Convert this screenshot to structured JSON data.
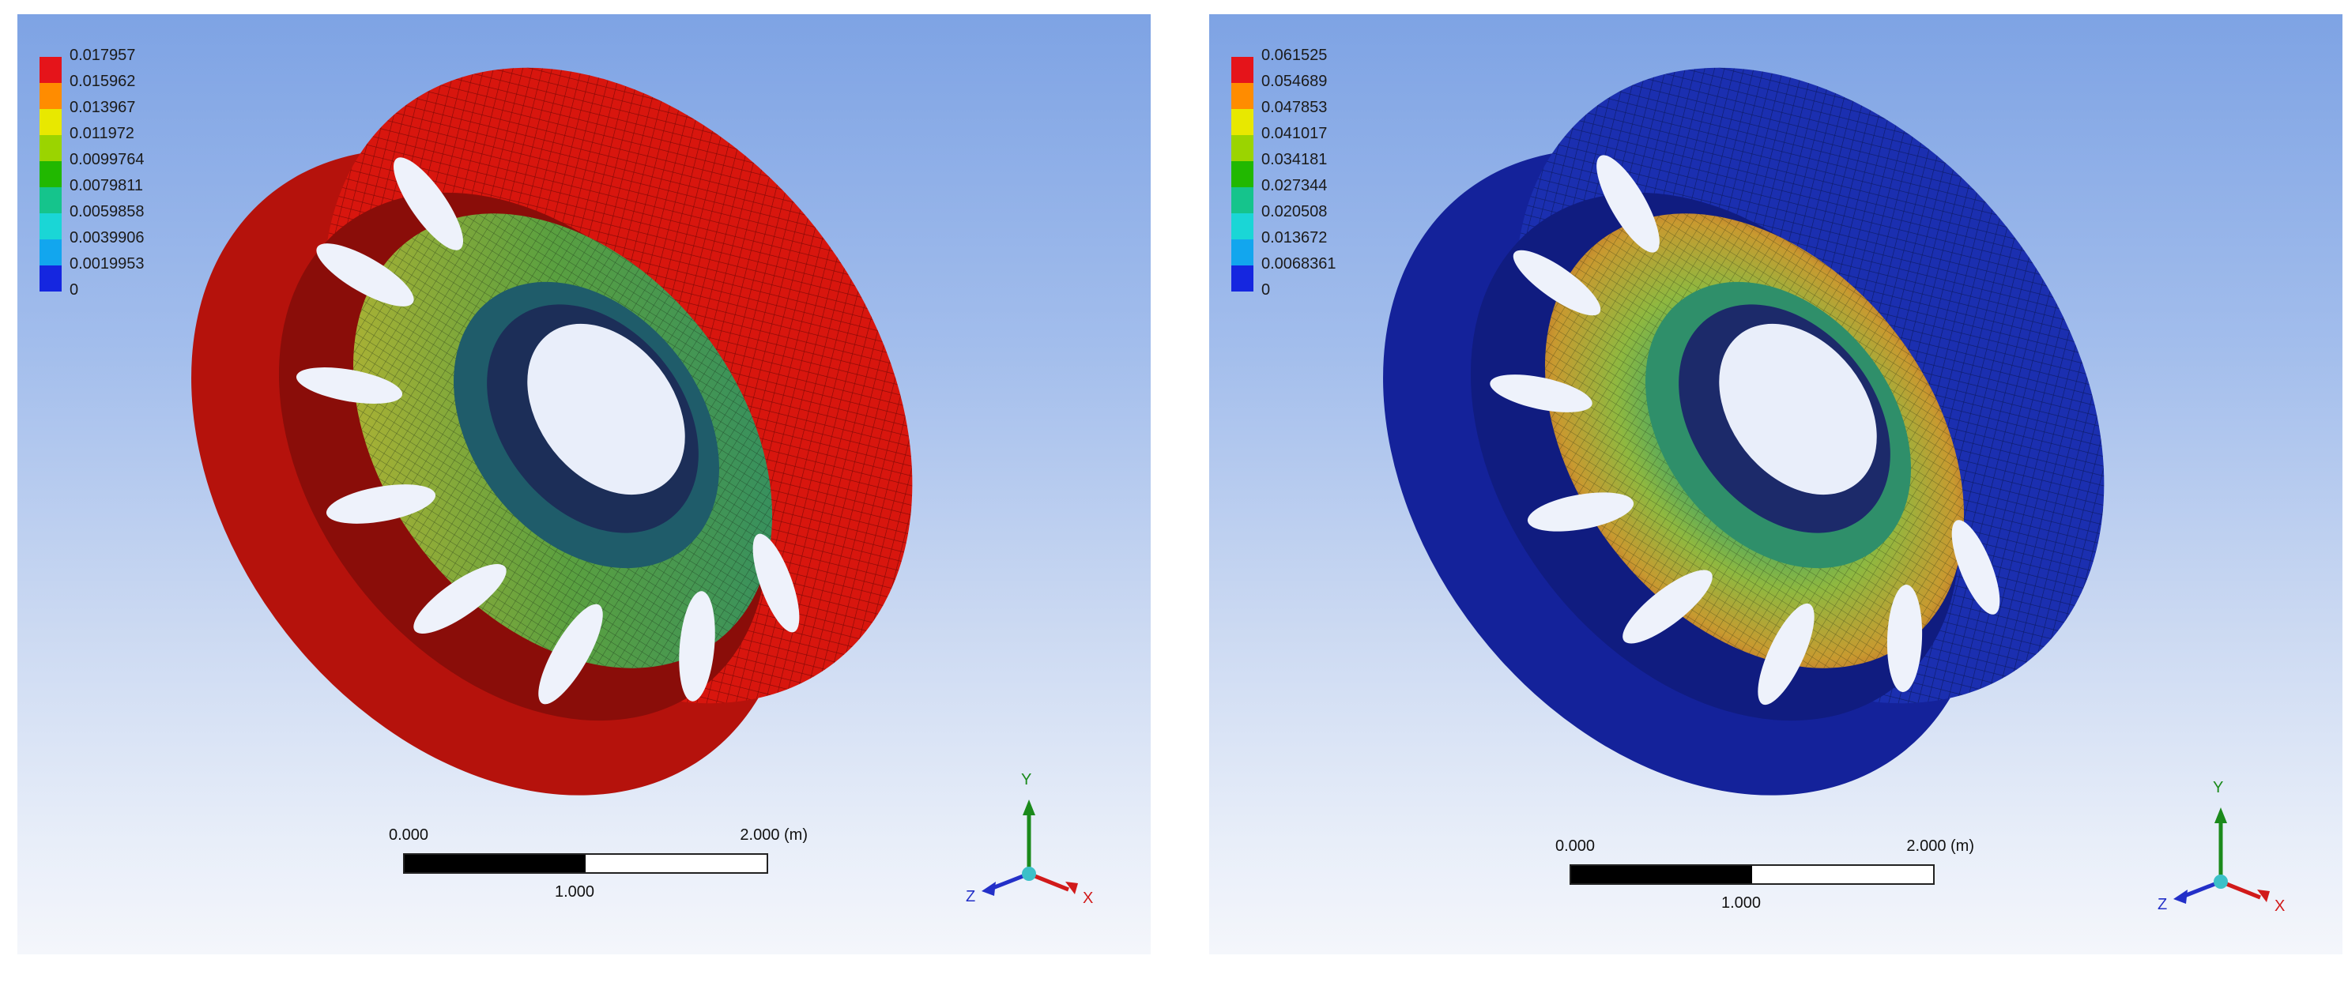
{
  "panels": [
    {
      "id": "left",
      "legend": [
        "0.017957",
        "0.015962",
        "0.013967",
        "0.011972",
        "0.0099764",
        "0.0079811",
        "0.0059858",
        "0.0039906",
        "0.0019953",
        "0"
      ],
      "scale": {
        "start": "0.000",
        "end": "2.000",
        "unit": "(m)",
        "mid": "1.000"
      },
      "axes": {
        "y": "Y",
        "z": "Z",
        "x": "X"
      },
      "rim_color": "#d21a10",
      "hub_color": "#274a6e"
    },
    {
      "id": "right",
      "legend": [
        "0.061525",
        "0.054689",
        "0.047853",
        "0.041017",
        "0.034181",
        "0.027344",
        "0.020508",
        "0.013672",
        "0.0068361",
        "0"
      ],
      "scale": {
        "start": "0.000",
        "end": "2.000",
        "unit": "(m)",
        "mid": "1.000"
      },
      "axes": {
        "y": "Y",
        "z": "Z",
        "x": "X"
      },
      "rim_color": "#1a2fa8",
      "hub_color": "#2f9a6a"
    }
  ],
  "legend_colors": [
    "#e5141a",
    "#ff8c00",
    "#e8e800",
    "#9bd400",
    "#21b800",
    "#15c48c",
    "#1ad6d6",
    "#12a6ee",
    "#1526e0"
  ],
  "axis_colors": {
    "y": "#1b8a1b",
    "z": "#2330c8",
    "x": "#d11a1a",
    "origin": "#3cc0c8"
  }
}
